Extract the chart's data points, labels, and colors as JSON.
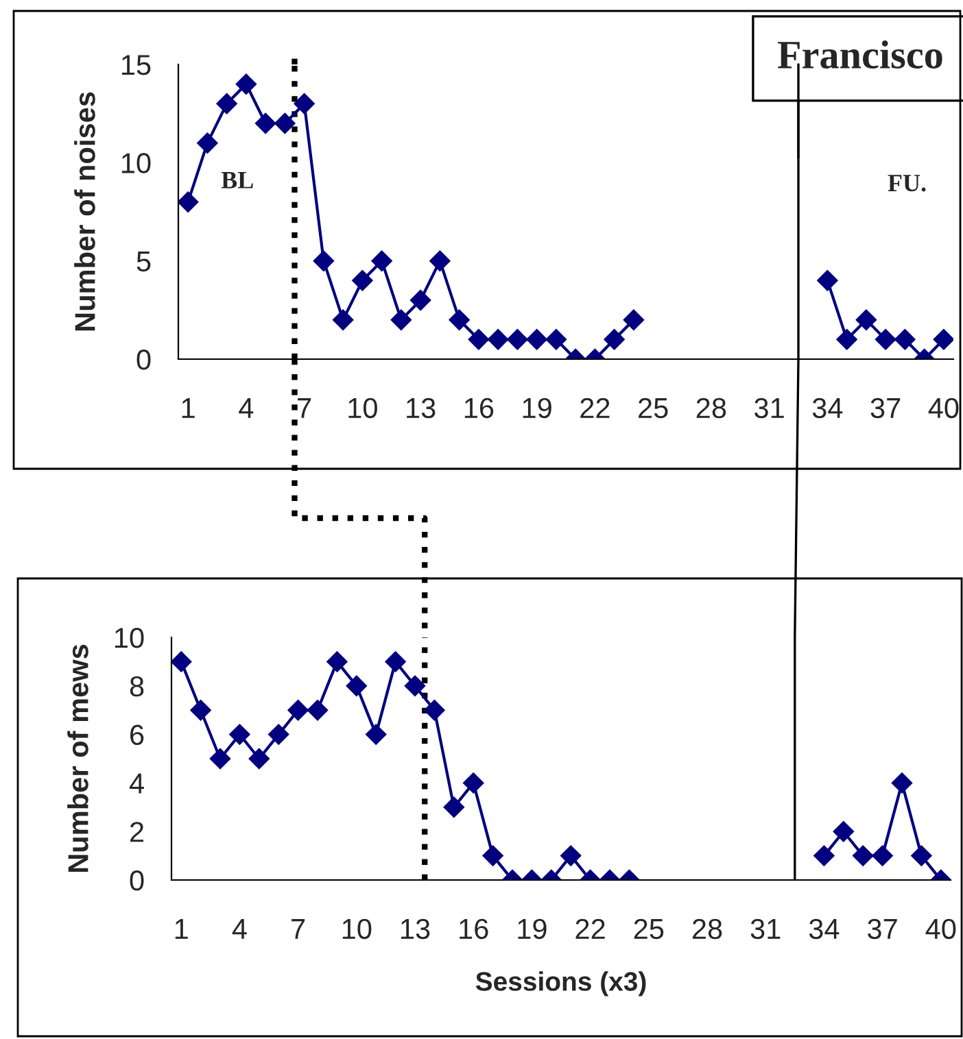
{
  "chart_data": [
    {
      "type": "line",
      "title": "Francisco",
      "ylabel": "Number of noises",
      "annotations": [
        "BL",
        "FU."
      ],
      "x": [
        1,
        2,
        3,
        4,
        5,
        6,
        7,
        8,
        9,
        10,
        11,
        12,
        13,
        14,
        15,
        16,
        17,
        18,
        19,
        20,
        21,
        22,
        23,
        24,
        25,
        26,
        27,
        28,
        29,
        30,
        31,
        32,
        33,
        34,
        35,
        36,
        37,
        38,
        39,
        40
      ],
      "series": [
        {
          "color": "#000080",
          "values": [
            8,
            11,
            13,
            14,
            12,
            12,
            13,
            5,
            2,
            4,
            5,
            2,
            3,
            5,
            2,
            1,
            1,
            1,
            1,
            1,
            0,
            0,
            1,
            2,
            null,
            null,
            null,
            null,
            null,
            null,
            null,
            null,
            null,
            4,
            1,
            2,
            1,
            1,
            0,
            1
          ]
        }
      ],
      "xlim": [
        0.5,
        40.5
      ],
      "xticks": [
        1,
        4,
        7,
        10,
        13,
        16,
        19,
        22,
        25,
        28,
        31,
        34,
        37,
        40
      ],
      "ylim": [
        0,
        15
      ],
      "yticks": [
        0,
        5,
        10,
        15
      ],
      "ref_lines": [
        {
          "axis": "x",
          "value": 6.5,
          "line_style": "dotted",
          "color": "#000000"
        },
        {
          "axis": "x",
          "value": 32.5,
          "line_style": "solid",
          "color": "#000000"
        }
      ],
      "marker": "diamond",
      "line_style": "solid",
      "grid": false,
      "legend": false
    },
    {
      "type": "line",
      "xlabel": "Sessions (x3)",
      "ylabel": "Number of mews",
      "x": [
        1,
        2,
        3,
        4,
        5,
        6,
        7,
        8,
        9,
        10,
        11,
        12,
        13,
        14,
        15,
        16,
        17,
        18,
        19,
        20,
        21,
        22,
        23,
        24,
        25,
        26,
        27,
        28,
        29,
        30,
        31,
        32,
        33,
        34,
        35,
        36,
        37,
        38,
        39,
        40
      ],
      "series": [
        {
          "color": "#000080",
          "values": [
            9,
            7,
            5,
            6,
            5,
            6,
            7,
            7,
            9,
            8,
            6,
            9,
            8,
            7,
            3,
            4,
            1,
            0,
            0,
            0,
            1,
            0,
            0,
            0,
            null,
            null,
            null,
            null,
            null,
            null,
            null,
            null,
            null,
            1,
            2,
            1,
            1,
            4,
            1,
            0
          ]
        }
      ],
      "xlim": [
        0.5,
        40.5
      ],
      "xticks": [
        1,
        4,
        7,
        10,
        13,
        16,
        19,
        22,
        25,
        28,
        31,
        34,
        37,
        40
      ],
      "ylim": [
        0,
        10
      ],
      "yticks": [
        0,
        2,
        4,
        6,
        8,
        10
      ],
      "ref_lines": [
        {
          "axis": "x",
          "value": 13.5,
          "line_style": "dotted",
          "color": "#000000"
        },
        {
          "axis": "x",
          "value": 32.5,
          "line_style": "solid",
          "color": "#000000"
        }
      ],
      "marker": "diamond",
      "line_style": "solid",
      "grid": false,
      "legend": false
    }
  ]
}
